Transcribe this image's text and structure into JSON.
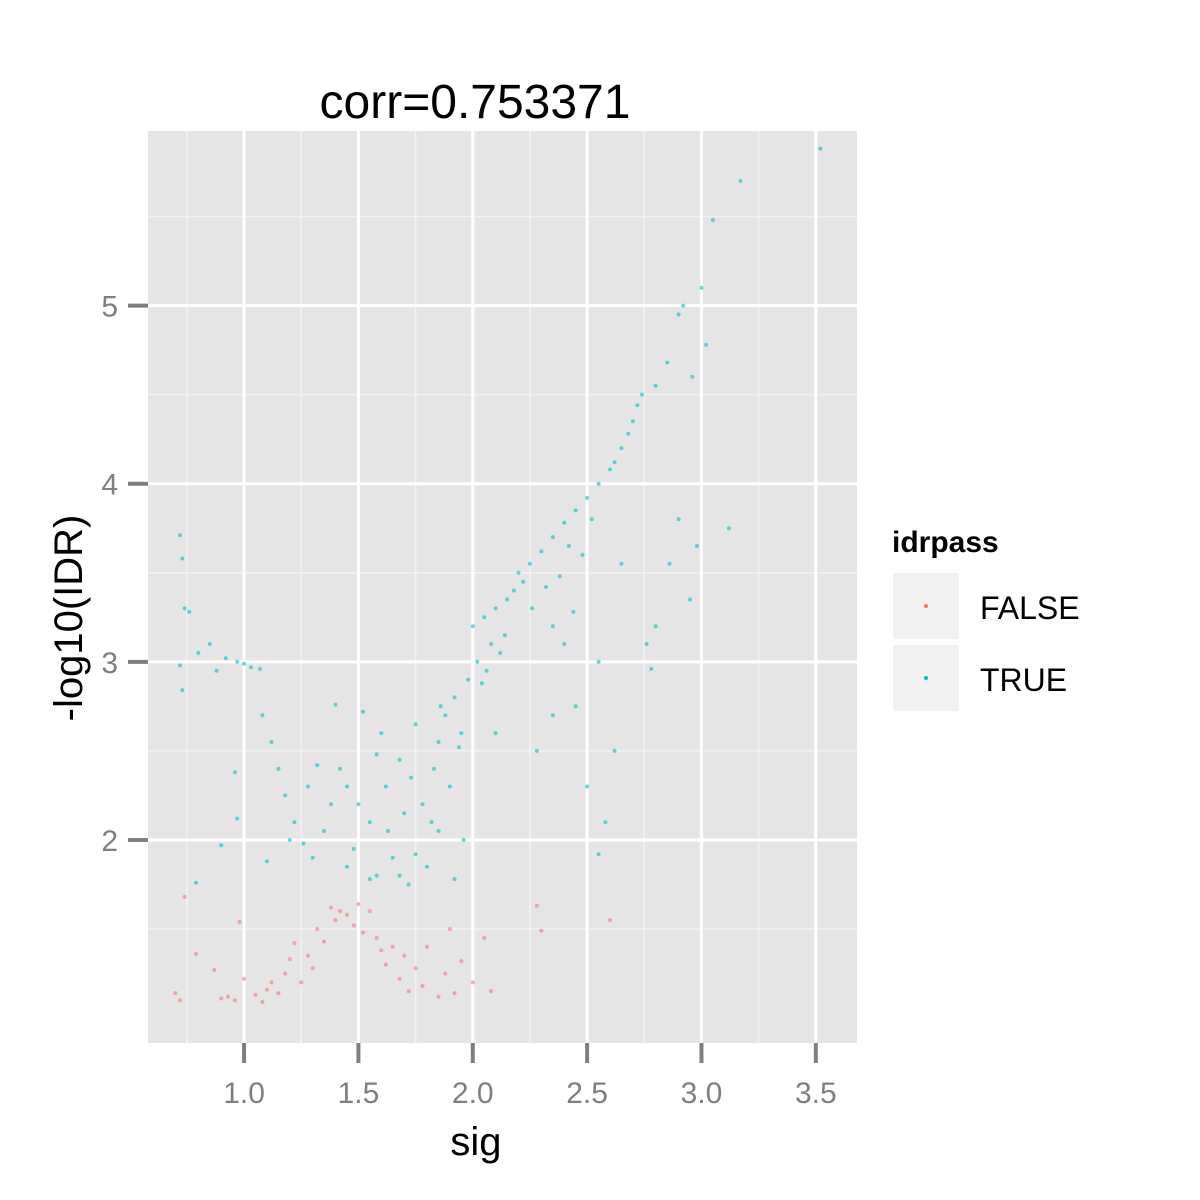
{
  "chart_data": {
    "type": "scatter",
    "title": "corr=0.753371",
    "xlabel": "sig",
    "ylabel": "-log10(IDR)",
    "xlim": [
      0.58,
      3.68
    ],
    "ylim": [
      0.86,
      5.98
    ],
    "x_ticks": [
      {
        "value": 1.0,
        "label": "1.0"
      },
      {
        "value": 1.5,
        "label": "1.5"
      },
      {
        "value": 2.0,
        "label": "2.0"
      },
      {
        "value": 2.5,
        "label": "2.5"
      },
      {
        "value": 3.0,
        "label": "3.0"
      },
      {
        "value": 3.5,
        "label": "3.5"
      }
    ],
    "y_ticks": [
      {
        "value": 2,
        "label": "2"
      },
      {
        "value": 3,
        "label": "3"
      },
      {
        "value": 4,
        "label": "4"
      },
      {
        "value": 5,
        "label": "5"
      }
    ],
    "grid": true,
    "legend": {
      "title": "idrpass",
      "placement": "right",
      "entries": [
        {
          "label": "FALSE",
          "color": "#F8766D"
        },
        {
          "label": "TRUE",
          "color": "#00BFC4"
        }
      ]
    },
    "threshold": 1.7,
    "series": [
      {
        "name": "FALSE",
        "color": "#F8766D",
        "points": [
          [
            0.7,
            1.14
          ],
          [
            0.72,
            1.1
          ],
          [
            0.74,
            1.68
          ],
          [
            0.79,
            1.36
          ],
          [
            0.87,
            1.27
          ],
          [
            0.9,
            1.11
          ],
          [
            0.93,
            1.12
          ],
          [
            0.96,
            1.1
          ],
          [
            0.98,
            1.54
          ],
          [
            1.0,
            1.22
          ],
          [
            1.05,
            1.13
          ],
          [
            1.08,
            1.09
          ],
          [
            1.1,
            1.16
          ],
          [
            1.12,
            1.2
          ],
          [
            1.15,
            1.14
          ],
          [
            1.18,
            1.25
          ],
          [
            1.2,
            1.33
          ],
          [
            1.22,
            1.42
          ],
          [
            1.25,
            1.2
          ],
          [
            1.28,
            1.35
          ],
          [
            1.3,
            1.28
          ],
          [
            1.32,
            1.5
          ],
          [
            1.35,
            1.43
          ],
          [
            1.38,
            1.62
          ],
          [
            1.4,
            1.55
          ],
          [
            1.42,
            1.6
          ],
          [
            1.45,
            1.58
          ],
          [
            1.48,
            1.52
          ],
          [
            1.5,
            1.64
          ],
          [
            1.52,
            1.48
          ],
          [
            1.55,
            1.6
          ],
          [
            1.58,
            1.45
          ],
          [
            1.6,
            1.38
          ],
          [
            1.62,
            1.3
          ],
          [
            1.65,
            1.4
          ],
          [
            1.68,
            1.22
          ],
          [
            1.7,
            1.35
          ],
          [
            1.72,
            1.15
          ],
          [
            1.75,
            1.28
          ],
          [
            1.78,
            1.18
          ],
          [
            1.8,
            1.4
          ],
          [
            1.85,
            1.12
          ],
          [
            1.88,
            1.25
          ],
          [
            1.9,
            1.5
          ],
          [
            1.92,
            1.14
          ],
          [
            1.95,
            1.32
          ],
          [
            2.0,
            1.2
          ],
          [
            2.05,
            1.45
          ],
          [
            2.08,
            1.15
          ],
          [
            2.28,
            1.63
          ],
          [
            2.3,
            1.49
          ],
          [
            2.6,
            1.55
          ]
        ]
      },
      {
        "name": "TRUE",
        "color": "#00BFC4",
        "points": [
          [
            0.72,
            3.71
          ],
          [
            0.73,
            3.58
          ],
          [
            0.74,
            3.3
          ],
          [
            0.76,
            3.28
          ],
          [
            0.72,
            2.98
          ],
          [
            0.73,
            2.84
          ],
          [
            0.8,
            3.05
          ],
          [
            0.85,
            3.1
          ],
          [
            0.88,
            2.95
          ],
          [
            0.92,
            3.02
          ],
          [
            0.97,
            3.0
          ],
          [
            1.0,
            2.99
          ],
          [
            1.03,
            2.97
          ],
          [
            1.07,
            2.96
          ],
          [
            0.96,
            2.38
          ],
          [
            0.97,
            2.12
          ],
          [
            0.9,
            1.97
          ],
          [
            0.79,
            1.76
          ],
          [
            1.08,
            2.7
          ],
          [
            1.12,
            2.55
          ],
          [
            1.15,
            2.4
          ],
          [
            1.18,
            2.25
          ],
          [
            1.22,
            2.1
          ],
          [
            1.26,
            1.98
          ],
          [
            1.3,
            1.9
          ],
          [
            1.35,
            2.05
          ],
          [
            1.4,
            2.76
          ],
          [
            1.42,
            2.4
          ],
          [
            1.45,
            1.85
          ],
          [
            1.48,
            1.95
          ],
          [
            1.5,
            2.2
          ],
          [
            1.52,
            2.72
          ],
          [
            1.55,
            2.1
          ],
          [
            1.58,
            1.8
          ],
          [
            1.6,
            2.6
          ],
          [
            1.62,
            2.3
          ],
          [
            1.65,
            1.9
          ],
          [
            1.68,
            2.45
          ],
          [
            1.7,
            2.15
          ],
          [
            1.72,
            1.75
          ],
          [
            1.75,
            2.65
          ],
          [
            1.78,
            2.2
          ],
          [
            1.8,
            1.85
          ],
          [
            1.83,
            2.4
          ],
          [
            1.85,
            2.55
          ],
          [
            1.88,
            2.7
          ],
          [
            1.9,
            2.3
          ],
          [
            1.92,
            2.8
          ],
          [
            1.95,
            2.6
          ],
          [
            1.98,
            2.9
          ],
          [
            2.0,
            3.2
          ],
          [
            2.02,
            3.0
          ],
          [
            2.05,
            3.25
          ],
          [
            2.08,
            3.1
          ],
          [
            2.1,
            3.3
          ],
          [
            2.15,
            3.35
          ],
          [
            2.18,
            3.4
          ],
          [
            2.2,
            3.5
          ],
          [
            2.25,
            3.55
          ],
          [
            2.3,
            3.62
          ],
          [
            2.35,
            3.7
          ],
          [
            2.4,
            3.78
          ],
          [
            2.45,
            3.85
          ],
          [
            2.5,
            3.92
          ],
          [
            2.55,
            4.0
          ],
          [
            2.6,
            4.08
          ],
          [
            2.65,
            4.2
          ],
          [
            2.7,
            4.35
          ],
          [
            2.74,
            4.5
          ],
          [
            2.8,
            4.55
          ],
          [
            2.85,
            4.68
          ],
          [
            2.9,
            4.95
          ],
          [
            2.92,
            5.0
          ],
          [
            2.96,
            4.6
          ],
          [
            3.0,
            5.1
          ],
          [
            3.02,
            4.78
          ],
          [
            3.05,
            5.48
          ],
          [
            3.17,
            5.7
          ],
          [
            3.52,
            5.88
          ],
          [
            2.95,
            3.35
          ],
          [
            2.9,
            3.8
          ],
          [
            2.98,
            3.65
          ],
          [
            3.12,
            3.75
          ],
          [
            2.78,
            2.96
          ],
          [
            2.62,
            2.5
          ],
          [
            2.58,
            2.1
          ],
          [
            2.55,
            1.92
          ],
          [
            2.5,
            2.3
          ],
          [
            2.45,
            2.75
          ],
          [
            2.4,
            3.1
          ],
          [
            2.35,
            3.2
          ],
          [
            2.65,
            3.55
          ],
          [
            2.55,
            3.0
          ],
          [
            2.35,
            2.7
          ],
          [
            2.28,
            2.5
          ],
          [
            2.1,
            2.6
          ],
          [
            1.96,
            2.0
          ],
          [
            1.92,
            1.78
          ],
          [
            1.85,
            2.05
          ],
          [
            1.75,
            1.92
          ],
          [
            1.68,
            1.8
          ],
          [
            1.55,
            1.78
          ],
          [
            1.45,
            2.3
          ],
          [
            1.38,
            2.2
          ],
          [
            1.32,
            2.42
          ],
          [
            1.28,
            2.3
          ],
          [
            1.2,
            2.0
          ],
          [
            1.1,
            1.88
          ],
          [
            1.58,
            2.48
          ],
          [
            1.63,
            2.05
          ],
          [
            1.73,
            2.35
          ],
          [
            1.82,
            2.1
          ],
          [
            2.12,
            3.05
          ],
          [
            2.22,
            3.45
          ],
          [
            2.32,
            3.42
          ],
          [
            2.42,
            3.65
          ],
          [
            2.48,
            3.6
          ],
          [
            2.52,
            3.8
          ],
          [
            2.62,
            4.12
          ],
          [
            2.68,
            4.28
          ],
          [
            2.72,
            4.44
          ],
          [
            2.76,
            3.1
          ],
          [
            2.8,
            3.2
          ],
          [
            2.86,
            3.55
          ],
          [
            2.04,
            2.88
          ],
          [
            2.14,
            3.15
          ],
          [
            2.26,
            3.3
          ],
          [
            2.38,
            3.48
          ],
          [
            2.44,
            3.28
          ],
          [
            1.86,
            2.75
          ],
          [
            1.94,
            2.52
          ],
          [
            2.06,
            2.95
          ]
        ]
      }
    ]
  }
}
